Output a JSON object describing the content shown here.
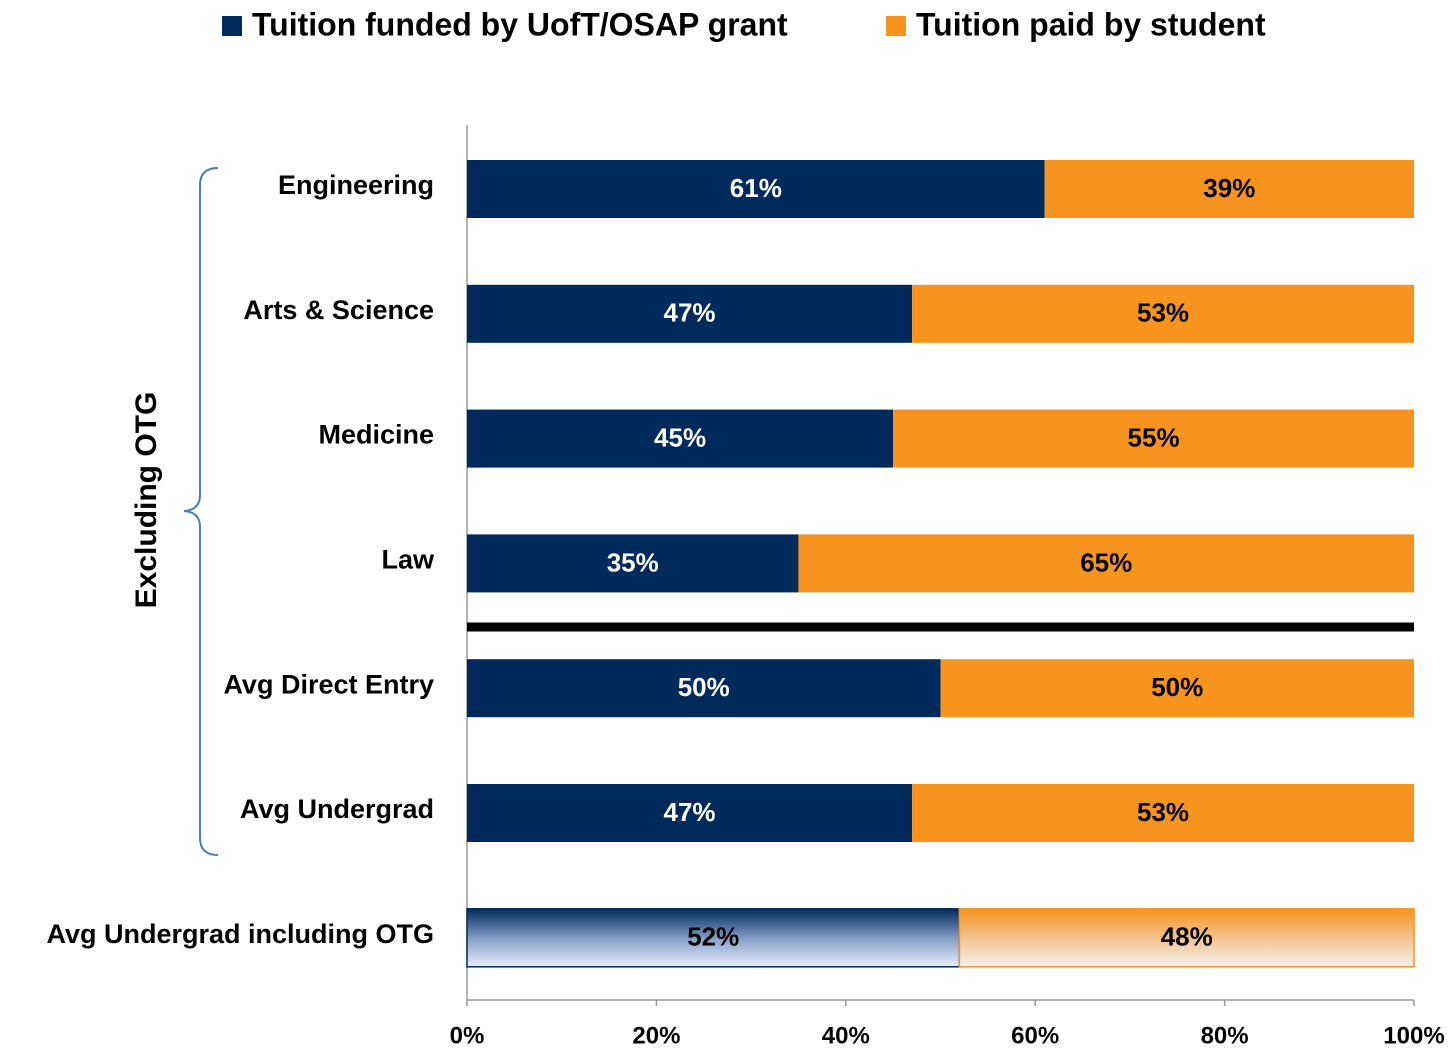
{
  "chart_data": {
    "type": "bar",
    "orientation": "horizontal",
    "stacked": true,
    "categories": [
      "Engineering",
      "Arts & Science",
      "Medicine",
      "Law",
      "Avg Direct Entry",
      "Avg Undergrad",
      "Avg Undergrad including OTG"
    ],
    "series": [
      {
        "name": "Tuition funded by UofT/OSAP grant",
        "color": "#002a5c",
        "values": [
          61,
          47,
          45,
          35,
          50,
          47,
          52
        ],
        "value_labels": [
          "61%",
          "47%",
          "45%",
          "35%",
          "50%",
          "47%",
          "52%"
        ]
      },
      {
        "name": "Tuition paid by student",
        "color": "#f7941d",
        "values": [
          39,
          53,
          55,
          65,
          50,
          53,
          48
        ],
        "value_labels": [
          "39%",
          "53%",
          "55%",
          "65%",
          "50%",
          "53%",
          "48%"
        ]
      }
    ],
    "xlim": [
      0,
      100
    ],
    "xticks": [
      {
        "value": 0,
        "label": "0%"
      },
      {
        "value": 20,
        "label": "20%"
      },
      {
        "value": 40,
        "label": "40%"
      },
      {
        "value": 60,
        "label": "60%"
      },
      {
        "value": 80,
        "label": "80%"
      },
      {
        "value": 100,
        "label": "100%"
      }
    ],
    "legend": "top",
    "annotations": [
      "Excluding OTG"
    ]
  }
}
